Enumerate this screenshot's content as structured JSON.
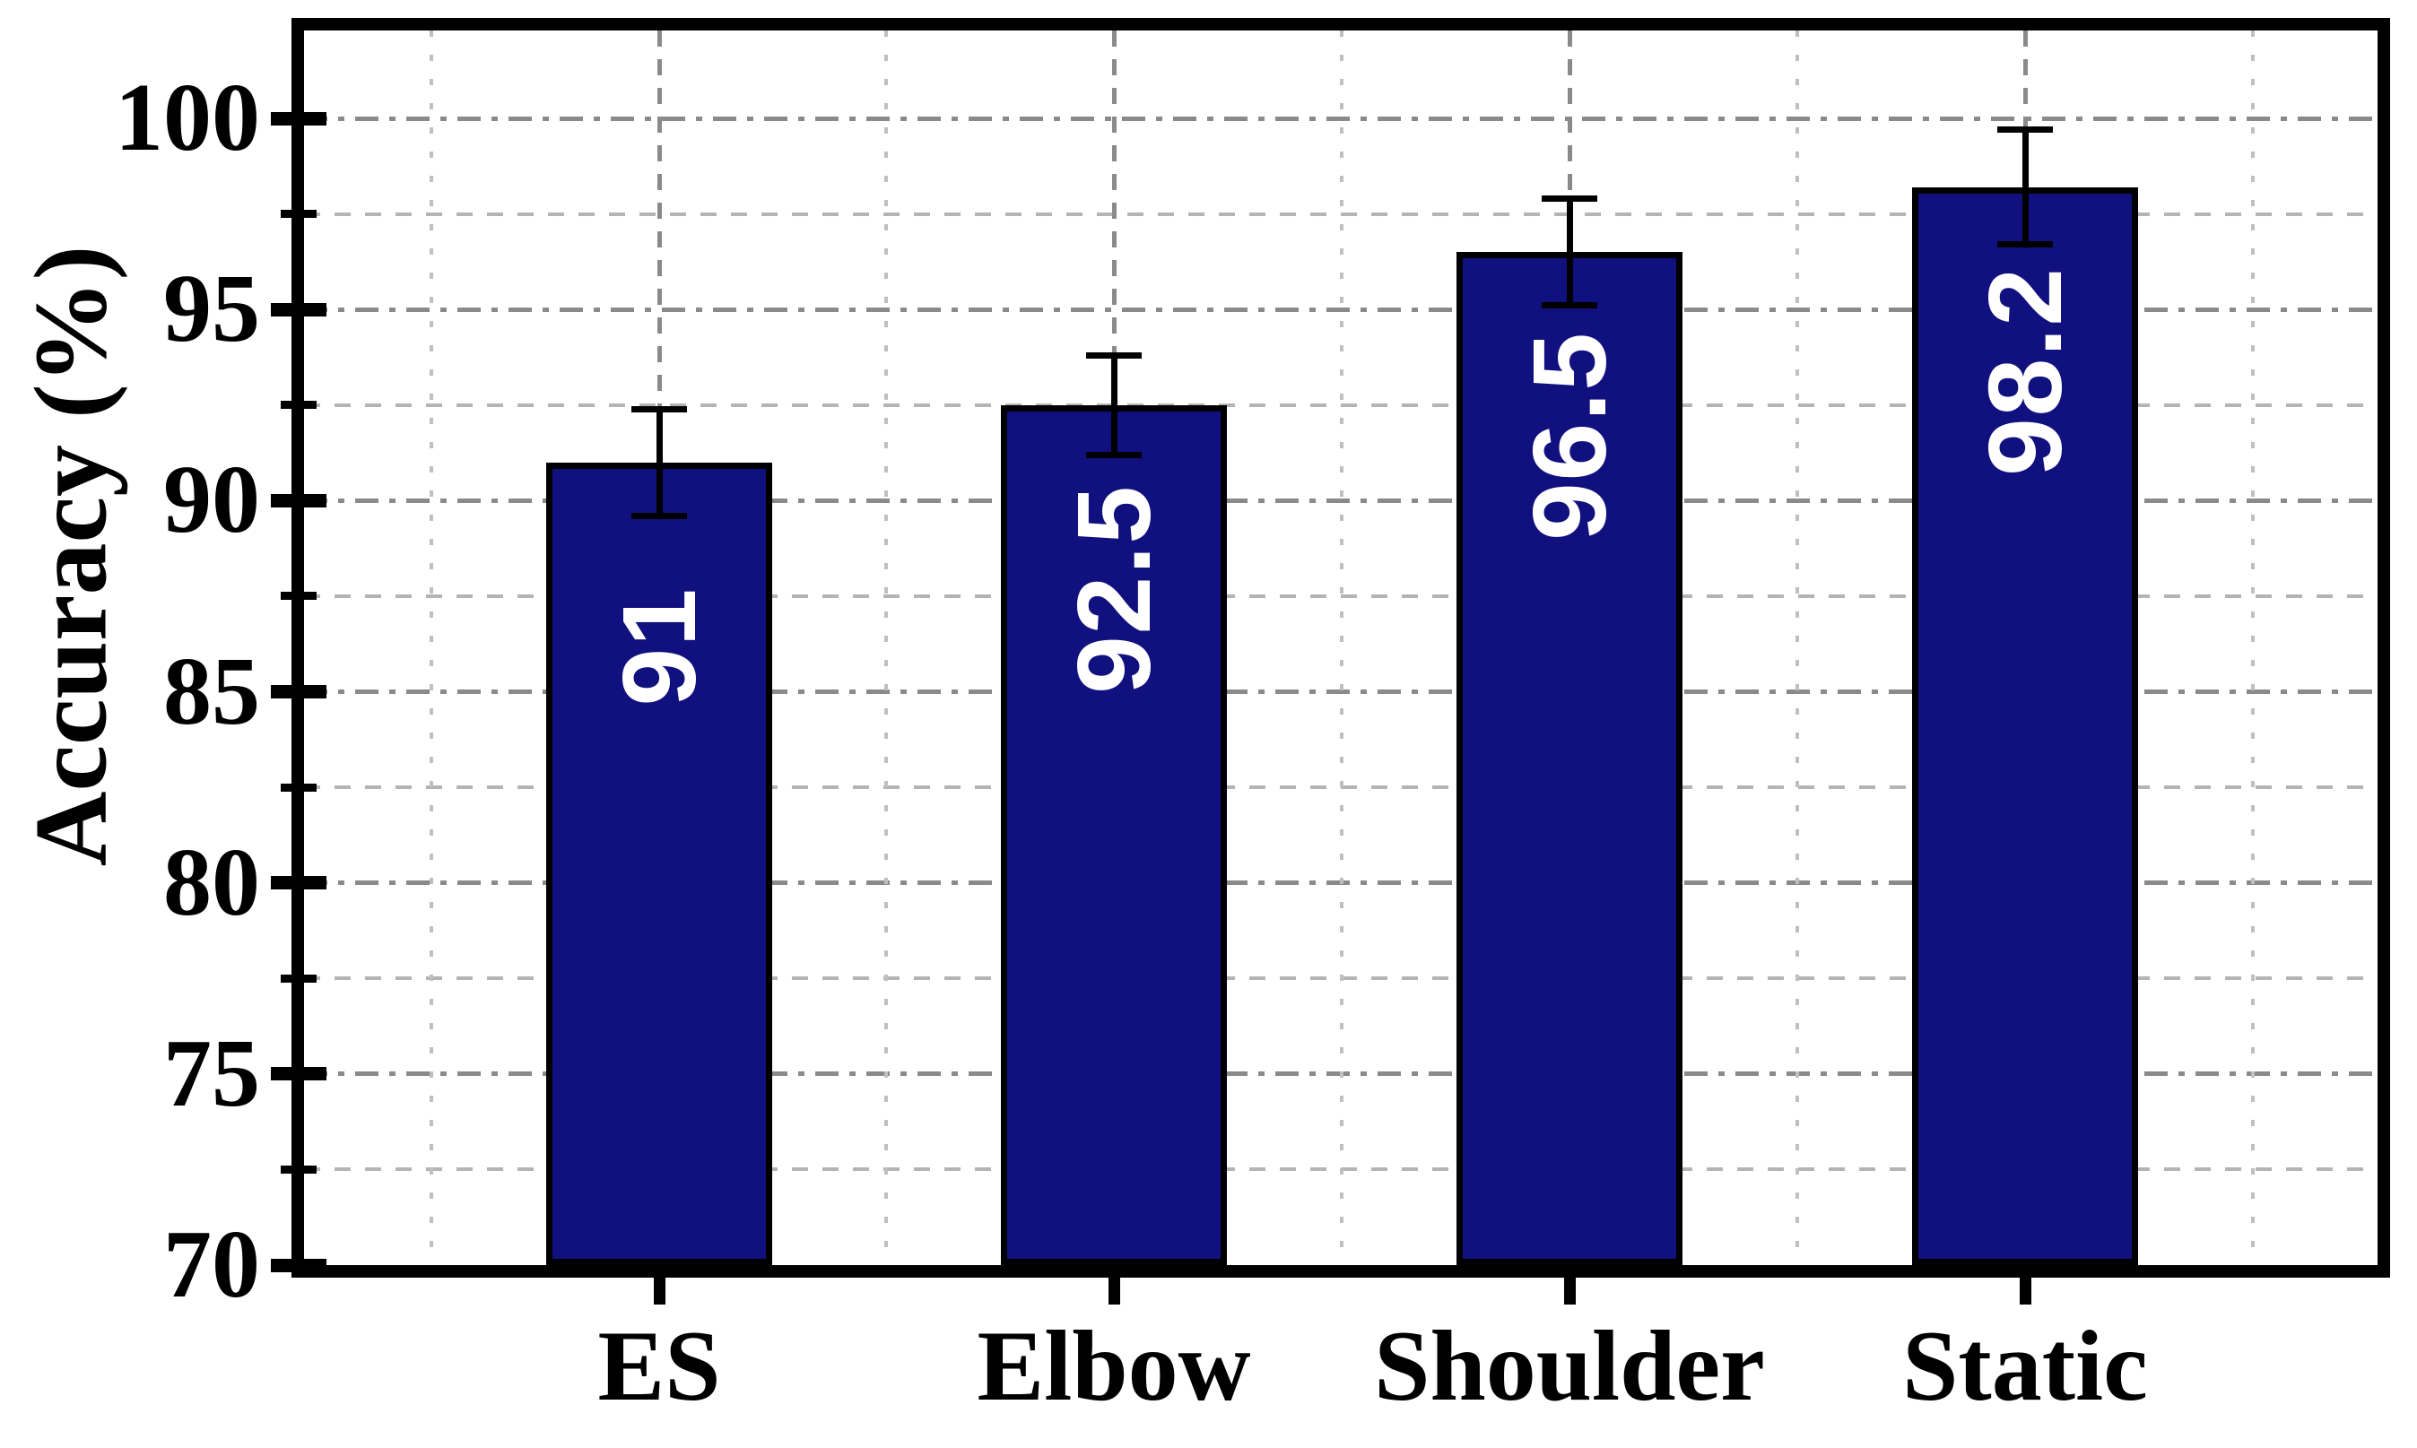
{
  "chart_data": {
    "type": "bar",
    "title": "",
    "categories": [
      "ES",
      "Elbow",
      "Shoulder",
      "Static"
    ],
    "values": [
      91,
      92.5,
      96.5,
      98.2
    ],
    "bar_labels": [
      "91",
      "92.5",
      "96.5",
      "98.2"
    ],
    "error_bars": [
      1.4,
      1.3,
      1.4,
      1.5
    ],
    "xlabel": "",
    "ylabel": "Accuracy (%)",
    "ylim": [
      70,
      102.3
    ],
    "y_major_ticks": [
      70,
      75,
      80,
      85,
      90,
      95,
      100
    ],
    "y_major_tick_labels": [
      "70",
      "75",
      "80",
      "85",
      "90",
      "95",
      "100"
    ],
    "y_minor_ticks": [
      72.5,
      77.5,
      82.5,
      87.5,
      92.5,
      97.5
    ],
    "grid": {
      "horizontal_major": true,
      "horizontal_minor": true,
      "vertical_major_at_bar_centers": true,
      "vertical_minor_at_category_boundaries": true,
      "style": "dashed"
    },
    "legend": null,
    "colors": {
      "bar_fill": "#11107F",
      "bar_border": "#000000",
      "value_label": "#FFFFFF",
      "error_bar": "#000000",
      "grid_major": "#8a8a8a",
      "grid_minor": "#bfbfbf",
      "axis": "#000000",
      "background": "#FFFFFF",
      "text": "#000000"
    }
  }
}
